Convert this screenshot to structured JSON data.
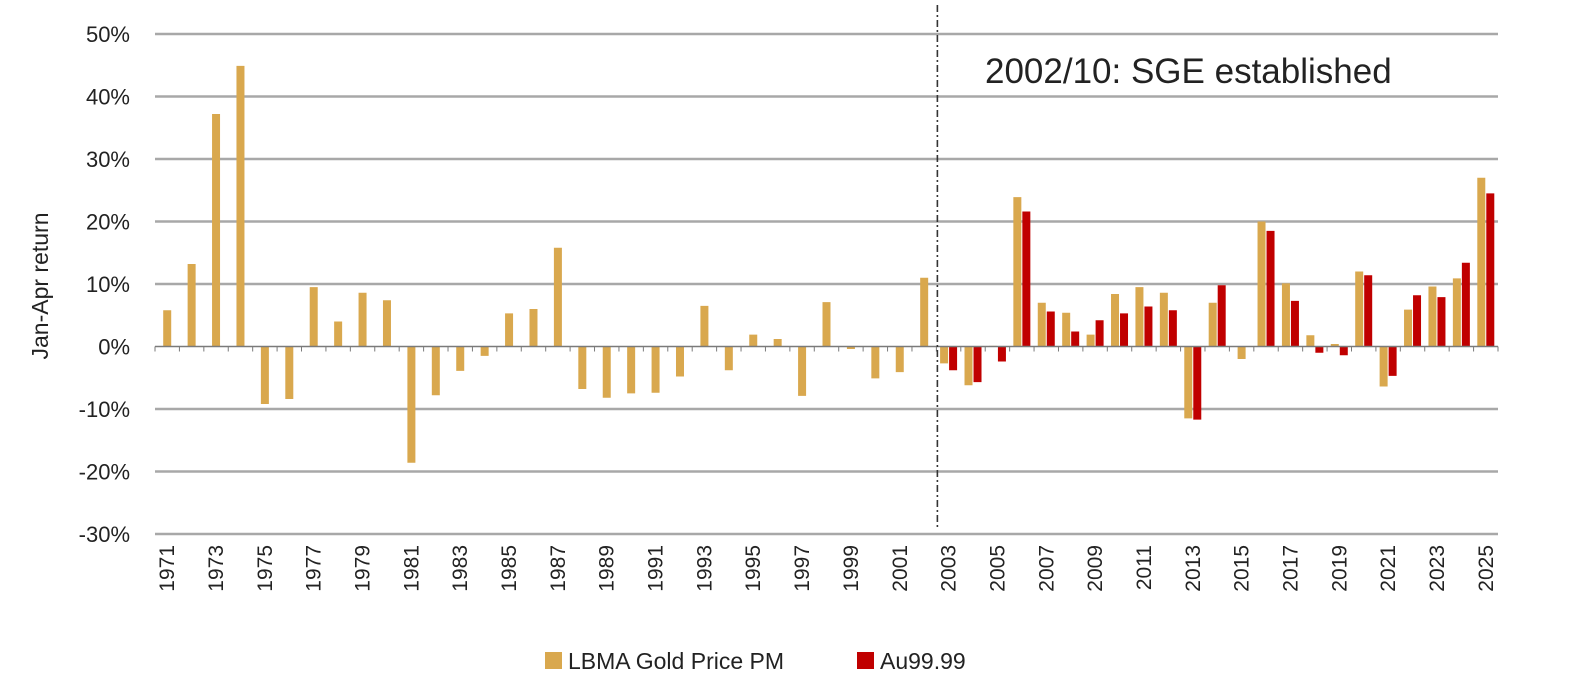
{
  "chart_data": {
    "type": "bar",
    "ylabel": "Jan-Apr return",
    "ylim": [
      -30,
      50
    ],
    "yticks": [
      50,
      40,
      30,
      20,
      10,
      0,
      -10,
      -20,
      -30
    ],
    "ytick_labels": [
      "50%",
      "40%",
      "30%",
      "20%",
      "10%",
      "0%",
      "-10%",
      "-20%",
      "-30%"
    ],
    "grid": true,
    "legend_position": "bottom",
    "categories": [
      "1971",
      "1972",
      "1973",
      "1974",
      "1975",
      "1976",
      "1977",
      "1978",
      "1979",
      "1980",
      "1981",
      "1982",
      "1983",
      "1984",
      "1985",
      "1986",
      "1987",
      "1988",
      "1989",
      "1990",
      "1991",
      "1992",
      "1993",
      "1994",
      "1995",
      "1996",
      "1997",
      "1998",
      "1999",
      "2000",
      "2001",
      "2002",
      "2003",
      "2004",
      "2005",
      "2006",
      "2007",
      "2008",
      "2009",
      "2010",
      "2011",
      "2012",
      "2013",
      "2014",
      "2015",
      "2016",
      "2017",
      "2018",
      "2019",
      "2020",
      "2021",
      "2022",
      "2023",
      "2024",
      "2025"
    ],
    "xtick_labels": [
      "1971",
      "1973",
      "1975",
      "1977",
      "1979",
      "1981",
      "1983",
      "1985",
      "1987",
      "1989",
      "1991",
      "1993",
      "1995",
      "1997",
      "1999",
      "2001",
      "2003",
      "2005",
      "2007",
      "2009",
      "2011",
      "2013",
      "2015",
      "2017",
      "2019",
      "2021",
      "2023",
      "2025"
    ],
    "series": [
      {
        "name": "LBMA Gold Price PM",
        "color": "#d9a84e",
        "values": [
          5.8,
          13.2,
          37.2,
          44.9,
          -9.2,
          -8.4,
          9.5,
          4.0,
          8.6,
          7.4,
          -18.6,
          -7.8,
          -3.9,
          -1.5,
          5.3,
          6.0,
          15.8,
          -6.8,
          -8.2,
          -7.5,
          -7.4,
          -4.8,
          6.5,
          -3.8,
          1.9,
          1.2,
          -7.9,
          7.1,
          -0.4,
          -5.1,
          -4.1,
          11.0,
          -2.7,
          -6.2,
          0.1,
          23.9,
          7.0,
          5.4,
          1.9,
          8.4,
          9.5,
          8.6,
          -11.5,
          7.0,
          -2.0,
          20.0,
          10.1,
          1.8,
          0.4,
          12.0,
          -6.4,
          5.9,
          9.6,
          10.9,
          27.0
        ]
      },
      {
        "name": "Au99.99",
        "color": "#c00000",
        "values": [
          null,
          null,
          null,
          null,
          null,
          null,
          null,
          null,
          null,
          null,
          null,
          null,
          null,
          null,
          null,
          null,
          null,
          null,
          null,
          null,
          null,
          null,
          null,
          null,
          null,
          null,
          null,
          null,
          null,
          null,
          null,
          null,
          -3.8,
          -5.7,
          -2.4,
          21.6,
          5.6,
          2.4,
          4.2,
          5.3,
          6.4,
          5.8,
          -11.7,
          9.8,
          null,
          18.5,
          7.3,
          -1.0,
          -1.4,
          11.4,
          -4.7,
          8.2,
          7.9,
          13.4,
          24.5
        ]
      }
    ],
    "divider_after_year": "2002",
    "annotations": [
      "2002/10: SGE established"
    ]
  }
}
